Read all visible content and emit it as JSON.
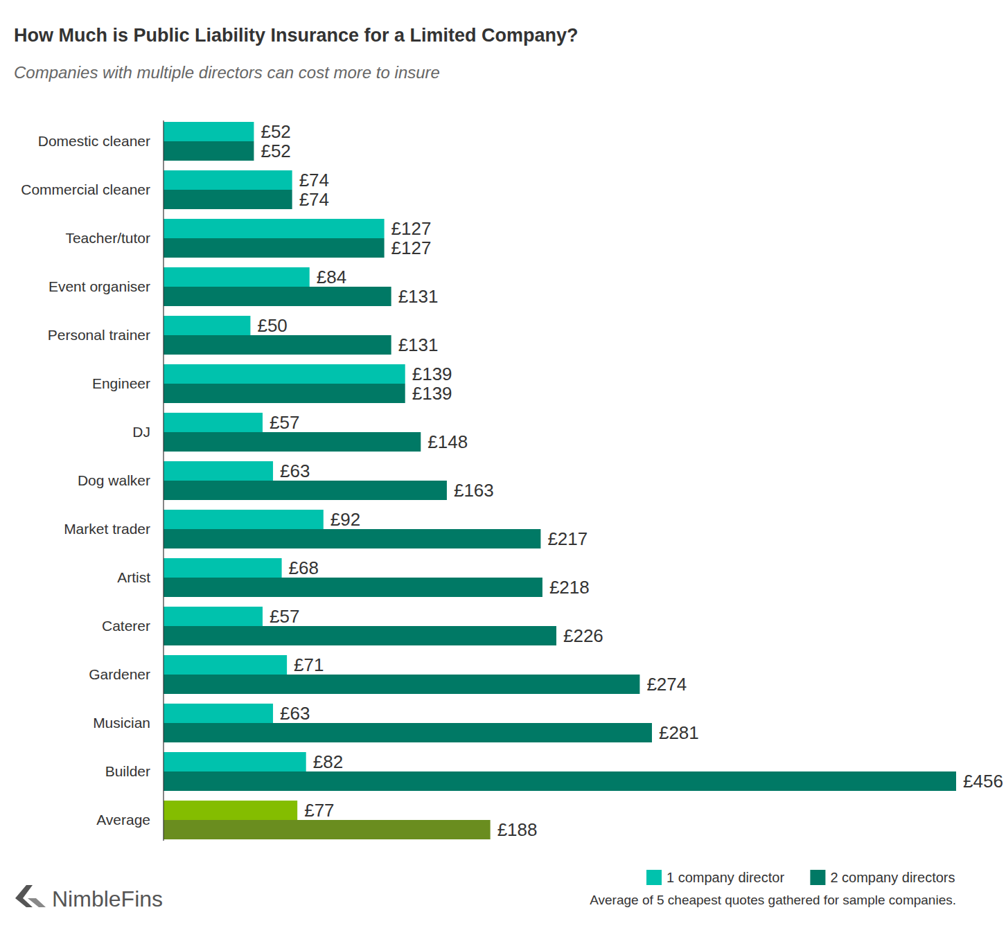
{
  "chart_data": {
    "type": "bar",
    "orientation": "horizontal",
    "title": "How Much is Public Liability Insurance for a Limited Company?",
    "subtitle": "Companies with multiple directors can cost more to insure",
    "note": "Average of 5 cheapest quotes gathered for sample companies.",
    "source": "NimbleFins",
    "categories": [
      "Domestic cleaner",
      "Commercial cleaner",
      "Teacher/tutor",
      "Event organiser",
      "Personal trainer",
      "Engineer",
      "DJ",
      "Dog walker",
      "Market trader",
      "Artist",
      "Caterer",
      "Gardener",
      "Musician",
      "Builder",
      "Average"
    ],
    "xlim": [
      0,
      456
    ],
    "tick_labels": "y",
    "grid": false,
    "data_labels": true,
    "legend": "bottom-right",
    "series": [
      {
        "name": "1 company director",
        "color": "#00c2ad",
        "colors": [
          "#00c2ad",
          "#00c2ad",
          "#00c2ad",
          "#00c2ad",
          "#00c2ad",
          "#00c2ad",
          "#00c2ad",
          "#00c2ad",
          "#00c2ad",
          "#00c2ad",
          "#00c2ad",
          "#00c2ad",
          "#00c2ad",
          "#00c2ad",
          "#84bd00"
        ],
        "values": [
          52,
          74,
          127,
          84,
          50,
          139,
          57,
          63,
          92,
          68,
          57,
          71,
          63,
          82,
          77
        ],
        "value_labels": [
          "£52",
          "£74",
          "£127",
          "£84",
          "£50",
          "£139",
          "£57",
          "£63",
          "£92",
          "£68",
          "£57",
          "£71",
          "£63",
          "£82",
          "£77"
        ]
      },
      {
        "name": "2 company directors",
        "color": "#007965",
        "colors": [
          "#007965",
          "#007965",
          "#007965",
          "#007965",
          "#007965",
          "#007965",
          "#007965",
          "#007965",
          "#007965",
          "#007965",
          "#007965",
          "#007965",
          "#007965",
          "#007965",
          "#6a8d1f"
        ],
        "values": [
          52,
          74,
          127,
          131,
          131,
          139,
          148,
          163,
          217,
          218,
          226,
          274,
          281,
          456,
          188
        ],
        "value_labels": [
          "£52",
          "£74",
          "£127",
          "£131",
          "£131",
          "£139",
          "£148",
          "£163",
          "£217",
          "£218",
          "£226",
          "£274",
          "£281",
          "£456",
          "£188"
        ]
      }
    ]
  }
}
